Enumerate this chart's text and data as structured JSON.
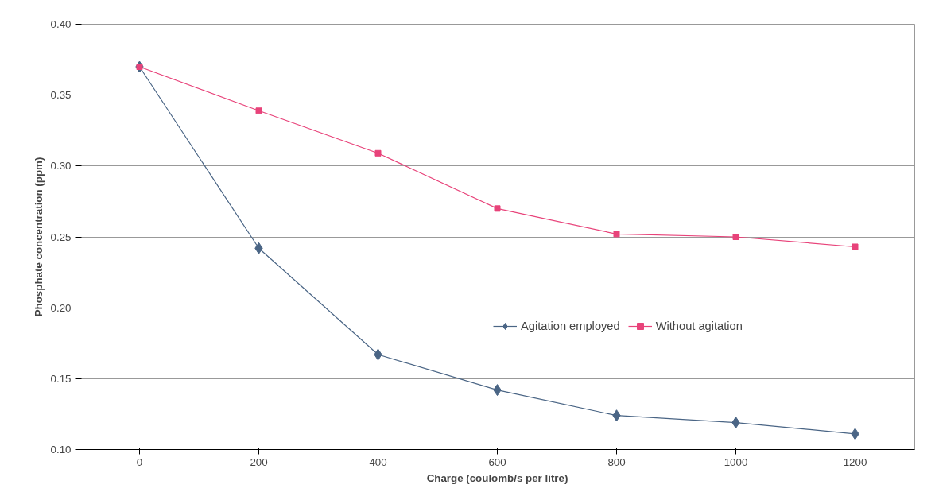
{
  "chart_data": {
    "type": "line",
    "xlabel": "Charge (coulomb/s per litre)",
    "ylabel": "Phosphate concentration (ppm)",
    "categories": [
      "0",
      "200",
      "400",
      "600",
      "800",
      "1000",
      "1200"
    ],
    "series": [
      {
        "name": "Agitation employed",
        "color": "#4a6585",
        "marker": "diamond",
        "values": [
          0.37,
          0.242,
          0.167,
          0.142,
          0.124,
          0.119,
          0.111
        ]
      },
      {
        "name": "Without agitation",
        "color": "#e8437a",
        "marker": "square",
        "values": [
          0.37,
          0.339,
          0.309,
          0.27,
          0.252,
          0.25,
          0.243
        ]
      }
    ],
    "ylim": [
      0.1,
      0.4
    ],
    "yticks": [
      {
        "value": 0.1,
        "label": "0.10"
      },
      {
        "value": 0.15,
        "label": "0.15"
      },
      {
        "value": 0.2,
        "label": "0.20"
      },
      {
        "value": 0.25,
        "label": "0.25"
      },
      {
        "value": 0.3,
        "label": "0.30"
      },
      {
        "value": 0.35,
        "label": "0.35"
      },
      {
        "value": 0.4,
        "label": "0.40"
      }
    ],
    "grid": "y",
    "legend": "bottom right",
    "line_style": "solid"
  }
}
